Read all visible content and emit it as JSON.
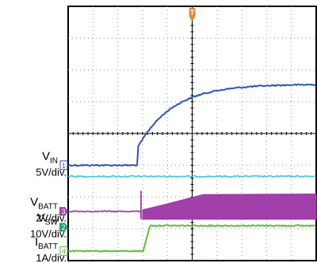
{
  "chart_data": {
    "type": "line",
    "grid": true,
    "x_divisions": 10,
    "y_divisions": 8,
    "trigger_marker": "T",
    "channels": [
      {
        "id": "1",
        "label_main": "V",
        "label_sub": "IN",
        "scale": "5V/div.",
        "color": "#2b56b0",
        "marker_color": "#2b56b0",
        "baseline_div": 3.0,
        "kind": "rise",
        "step_x_div": 2.8,
        "step_jump_div": 0.55,
        "final_div": 5.55,
        "tau_div": 1.4
      },
      {
        "id": "",
        "label_main": "",
        "label_sub": "",
        "scale": "",
        "color": "#44c3d6",
        "kind": "flat_noise",
        "baseline_div": 2.65
      },
      {
        "id": "3",
        "label_main": "V",
        "label_sub": "BATT",
        "scale": "2V/div.",
        "color": "#a040a8",
        "marker_color": "#a040a8",
        "baseline_div": 1.55,
        "kind": "switching",
        "step_x_div": 3.0,
        "spike_top_div": 2.2,
        "band_low_div": 1.3,
        "band_high_start_div": 1.75,
        "band_high_end_div": 2.1
      },
      {
        "id": "2",
        "label_main": "V",
        "label_sub": "SW",
        "scale": "10V/div.",
        "color": "#2a9b70",
        "marker_color": "#2a9b70",
        "baseline_div": 1.05
      },
      {
        "id": "4",
        "label_main": "I",
        "label_sub": "BATT",
        "scale": "1A/div.",
        "color": "#5fbe3e",
        "marker_color": "#5fbe3e",
        "baseline_div": 0.3,
        "kind": "step",
        "step_x_div": 3.05,
        "step_x_end_div": 3.3,
        "final_div": 1.1
      }
    ]
  }
}
